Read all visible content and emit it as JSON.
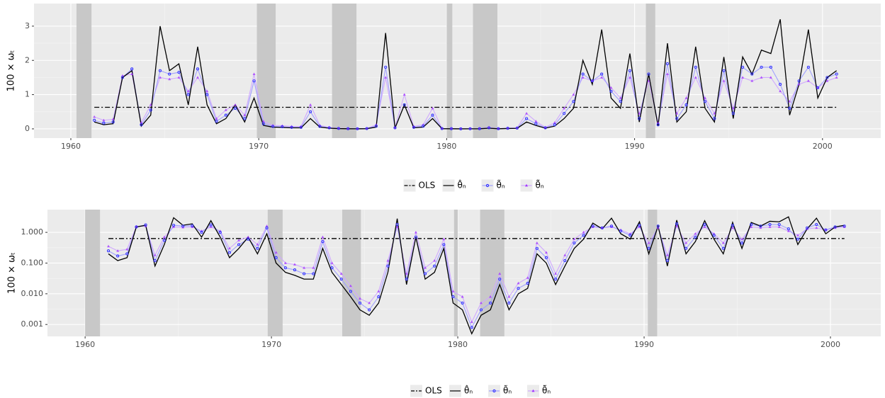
{
  "chart_data": [
    {
      "type": "line",
      "y_label": "100 × ωₜ",
      "log_y": false,
      "grid": true,
      "background": "#ebebeb",
      "shade_color": "#c8c8c8",
      "xlim": [
        1958.04,
        2003.1
      ],
      "ylim": [
        -0.27,
        3.66
      ],
      "xticks": [
        1960,
        1970,
        1980,
        1990,
        2000
      ],
      "yticks": [
        0,
        1,
        2,
        3
      ],
      "shaded": [
        [
          1960.3,
          1961.1
        ],
        [
          1969.9,
          1970.9
        ],
        [
          1973.9,
          1975.2
        ],
        [
          1980.0,
          1980.3
        ],
        [
          1981.4,
          1982.7
        ],
        [
          1990.6,
          1991.1
        ]
      ],
      "reference": {
        "name": "OLS",
        "value": 0.63,
        "color": "#000000"
      },
      "x": [
        1961.25,
        1961.75,
        1962.25,
        1962.75,
        1963.25,
        1963.75,
        1964.25,
        1964.75,
        1965.25,
        1965.75,
        1966.25,
        1966.75,
        1967.25,
        1967.75,
        1968.25,
        1968.75,
        1969.25,
        1969.75,
        1970.25,
        1970.75,
        1971.25,
        1971.75,
        1972.25,
        1972.75,
        1973.25,
        1973.75,
        1974.25,
        1974.75,
        1975.25,
        1975.75,
        1976.25,
        1976.75,
        1977.25,
        1977.75,
        1978.25,
        1978.75,
        1979.25,
        1979.75,
        1980.25,
        1980.75,
        1981.25,
        1981.75,
        1982.25,
        1982.75,
        1983.25,
        1983.75,
        1984.25,
        1984.75,
        1985.25,
        1985.75,
        1986.25,
        1986.75,
        1987.25,
        1987.75,
        1988.25,
        1988.75,
        1989.25,
        1989.75,
        1990.25,
        1990.75,
        1991.25,
        1991.75,
        1992.25,
        1992.75,
        1993.25,
        1993.75,
        1994.25,
        1994.75,
        1995.25,
        1995.75,
        1996.25,
        1996.75,
        1997.25,
        1997.75,
        1998.25,
        1998.75,
        1999.25,
        1999.75,
        2000.25,
        2000.75
      ],
      "series": [
        {
          "name": "θ̂ₙ",
          "color": "#000000",
          "line_color": "#000000",
          "marker": null,
          "values": [
            0.2,
            0.12,
            0.15,
            1.5,
            1.7,
            0.08,
            0.4,
            3.0,
            1.7,
            1.9,
            0.7,
            2.4,
            0.7,
            0.15,
            0.3,
            0.7,
            0.2,
            0.9,
            0.1,
            0.05,
            0.04,
            0.03,
            0.03,
            0.3,
            0.05,
            0.02,
            0.008,
            0.003,
            0.002,
            0.005,
            0.05,
            2.8,
            0.02,
            0.7,
            0.03,
            0.05,
            0.3,
            0.005,
            0.003,
            0.0005,
            0.002,
            0.003,
            0.02,
            0.003,
            0.01,
            0.015,
            0.2,
            0.1,
            0.02,
            0.08,
            0.3,
            0.6,
            2.0,
            1.3,
            2.9,
            0.9,
            0.6,
            2.2,
            0.2,
            1.6,
            0.08,
            2.5,
            0.2,
            0.5,
            2.4,
            0.6,
            0.2,
            2.1,
            0.3,
            2.1,
            1.6,
            2.3,
            2.2,
            3.2,
            0.4,
            1.3,
            2.9,
            0.9,
            1.5,
            1.7
          ]
        },
        {
          "name": "θ̃ₙ",
          "color": "#2a2aff",
          "line_color": "#a0a0ff",
          "marker": "circle",
          "values": [
            0.25,
            0.17,
            0.2,
            1.5,
            1.75,
            0.12,
            0.55,
            1.7,
            1.6,
            1.65,
            1.0,
            1.75,
            1.0,
            0.22,
            0.4,
            0.6,
            0.3,
            1.4,
            0.15,
            0.07,
            0.06,
            0.045,
            0.045,
            0.5,
            0.07,
            0.03,
            0.012,
            0.005,
            0.003,
            0.008,
            0.08,
            1.8,
            0.03,
            0.7,
            0.045,
            0.08,
            0.4,
            0.008,
            0.005,
            0.0008,
            0.003,
            0.005,
            0.03,
            0.005,
            0.015,
            0.022,
            0.3,
            0.15,
            0.03,
            0.12,
            0.45,
            0.8,
            1.6,
            1.4,
            1.6,
            1.1,
            0.8,
            1.7,
            0.3,
            1.6,
            0.12,
            1.9,
            0.3,
            0.7,
            1.8,
            0.8,
            0.3,
            1.7,
            0.45,
            1.8,
            1.6,
            1.8,
            1.8,
            1.3,
            0.6,
            1.4,
            1.8,
            1.2,
            1.5,
            1.6
          ]
        },
        {
          "name": "θ̃̃ₙ",
          "color": "#a030ff",
          "line_color": "#d0a8ff",
          "marker": "triangle",
          "values": [
            0.35,
            0.25,
            0.28,
            1.55,
            1.6,
            0.18,
            0.7,
            1.5,
            1.45,
            1.5,
            1.1,
            1.5,
            1.1,
            0.3,
            0.55,
            0.7,
            0.4,
            1.6,
            0.22,
            0.1,
            0.09,
            0.07,
            0.07,
            0.7,
            0.1,
            0.045,
            0.018,
            0.007,
            0.005,
            0.012,
            0.12,
            1.5,
            0.045,
            1.0,
            0.07,
            0.12,
            0.6,
            0.012,
            0.008,
            0.0012,
            0.005,
            0.008,
            0.045,
            0.008,
            0.022,
            0.033,
            0.45,
            0.22,
            0.045,
            0.18,
            0.6,
            1.0,
            1.5,
            1.4,
            1.5,
            1.2,
            0.9,
            1.5,
            0.45,
            1.4,
            0.18,
            1.6,
            0.45,
            0.9,
            1.5,
            0.9,
            0.45,
            1.4,
            0.6,
            1.5,
            1.4,
            1.5,
            1.5,
            1.1,
            0.8,
            1.3,
            1.4,
            1.2,
            1.4,
            1.5
          ]
        }
      ]
    },
    {
      "type": "line",
      "y_label": "100 × ωₜ",
      "log_y": true,
      "grid": true,
      "background": "#ebebeb",
      "shade_color": "#c8c8c8",
      "xlim": [
        1957.98,
        2002.7
      ],
      "ylim": [
        0.00041,
        5.5
      ],
      "xticks": [
        1960,
        1970,
        1980,
        1990,
        2000
      ],
      "yticks": [
        {
          "value": 0.001,
          "label": "0.001"
        },
        {
          "value": 0.01,
          "label": "0.010"
        },
        {
          "value": 0.1,
          "label": "0.100"
        },
        {
          "value": 1,
          "label": "1.000"
        }
      ],
      "shaded": [
        [
          1960.0,
          1960.8
        ],
        [
          1969.8,
          1970.6
        ],
        [
          1973.8,
          1974.8
        ],
        [
          1979.8,
          1980.0
        ],
        [
          1981.2,
          1982.5
        ],
        [
          1990.2,
          1990.7
        ]
      ],
      "reference": {
        "name": "OLS",
        "value": 0.63,
        "color": "#000000"
      },
      "x": [
        1961.25,
        1961.75,
        1962.25,
        1962.75,
        1963.25,
        1963.75,
        1964.25,
        1964.75,
        1965.25,
        1965.75,
        1966.25,
        1966.75,
        1967.25,
        1967.75,
        1968.25,
        1968.75,
        1969.25,
        1969.75,
        1970.25,
        1970.75,
        1971.25,
        1971.75,
        1972.25,
        1972.75,
        1973.25,
        1973.75,
        1974.25,
        1974.75,
        1975.25,
        1975.75,
        1976.25,
        1976.75,
        1977.25,
        1977.75,
        1978.25,
        1978.75,
        1979.25,
        1979.75,
        1980.25,
        1980.75,
        1981.25,
        1981.75,
        1982.25,
        1982.75,
        1983.25,
        1983.75,
        1984.25,
        1984.75,
        1985.25,
        1985.75,
        1986.25,
        1986.75,
        1987.25,
        1987.75,
        1988.25,
        1988.75,
        1989.25,
        1989.75,
        1990.25,
        1990.75,
        1991.25,
        1991.75,
        1992.25,
        1992.75,
        1993.25,
        1993.75,
        1994.25,
        1994.75,
        1995.25,
        1995.75,
        1996.25,
        1996.75,
        1997.25,
        1997.75,
        1998.25,
        1998.75,
        1999.25,
        1999.75,
        2000.25,
        2000.75
      ],
      "series": [
        {
          "name": "θ̂ₙ",
          "color": "#000000",
          "line_color": "#000000",
          "marker": null,
          "values": [
            0.2,
            0.12,
            0.15,
            1.5,
            1.7,
            0.08,
            0.4,
            3.0,
            1.7,
            1.9,
            0.7,
            2.4,
            0.7,
            0.15,
            0.3,
            0.7,
            0.2,
            0.9,
            0.1,
            0.05,
            0.04,
            0.03,
            0.03,
            0.3,
            0.05,
            0.02,
            0.008,
            0.003,
            0.002,
            0.005,
            0.05,
            2.8,
            0.02,
            0.7,
            0.03,
            0.05,
            0.3,
            0.005,
            0.003,
            0.0005,
            0.002,
            0.003,
            0.02,
            0.003,
            0.01,
            0.015,
            0.2,
            0.1,
            0.02,
            0.08,
            0.3,
            0.6,
            2.0,
            1.3,
            2.9,
            0.9,
            0.6,
            2.2,
            0.2,
            1.6,
            0.08,
            2.5,
            0.2,
            0.5,
            2.4,
            0.6,
            0.2,
            2.1,
            0.3,
            2.1,
            1.6,
            2.3,
            2.2,
            3.2,
            0.4,
            1.3,
            2.9,
            0.9,
            1.5,
            1.7
          ]
        },
        {
          "name": "θ̃ₙ",
          "color": "#2a2aff",
          "line_color": "#a0a0ff",
          "marker": "circle",
          "values": [
            0.25,
            0.17,
            0.2,
            1.5,
            1.75,
            0.12,
            0.55,
            1.7,
            1.6,
            1.65,
            1.0,
            1.75,
            1.0,
            0.22,
            0.4,
            0.6,
            0.3,
            1.4,
            0.15,
            0.07,
            0.06,
            0.045,
            0.045,
            0.5,
            0.07,
            0.03,
            0.012,
            0.005,
            0.003,
            0.008,
            0.08,
            1.8,
            0.03,
            0.7,
            0.045,
            0.08,
            0.4,
            0.008,
            0.005,
            0.0008,
            0.003,
            0.005,
            0.03,
            0.005,
            0.015,
            0.022,
            0.3,
            0.15,
            0.03,
            0.12,
            0.45,
            0.8,
            1.6,
            1.4,
            1.6,
            1.1,
            0.8,
            1.7,
            0.3,
            1.6,
            0.12,
            1.9,
            0.3,
            0.7,
            1.8,
            0.8,
            0.3,
            1.7,
            0.45,
            1.8,
            1.6,
            1.8,
            1.8,
            1.3,
            0.6,
            1.4,
            1.8,
            1.2,
            1.5,
            1.6
          ]
        },
        {
          "name": "θ̃̃ₙ",
          "color": "#a030ff",
          "line_color": "#d0a8ff",
          "marker": "triangle",
          "values": [
            0.35,
            0.25,
            0.28,
            1.55,
            1.6,
            0.18,
            0.7,
            1.5,
            1.45,
            1.5,
            1.1,
            1.5,
            1.1,
            0.3,
            0.55,
            0.7,
            0.4,
            1.6,
            0.22,
            0.1,
            0.09,
            0.07,
            0.07,
            0.7,
            0.1,
            0.045,
            0.018,
            0.007,
            0.005,
            0.012,
            0.12,
            1.5,
            0.045,
            1.0,
            0.07,
            0.12,
            0.6,
            0.012,
            0.008,
            0.0012,
            0.005,
            0.008,
            0.045,
            0.008,
            0.022,
            0.033,
            0.45,
            0.22,
            0.045,
            0.18,
            0.6,
            1.0,
            1.5,
            1.4,
            1.5,
            1.2,
            0.9,
            1.5,
            0.45,
            1.4,
            0.18,
            1.6,
            0.45,
            0.9,
            1.5,
            0.9,
            0.45,
            1.4,
            0.6,
            1.5,
            1.4,
            1.5,
            1.5,
            1.1,
            0.8,
            1.3,
            1.4,
            1.2,
            1.4,
            1.5
          ]
        }
      ]
    }
  ]
}
